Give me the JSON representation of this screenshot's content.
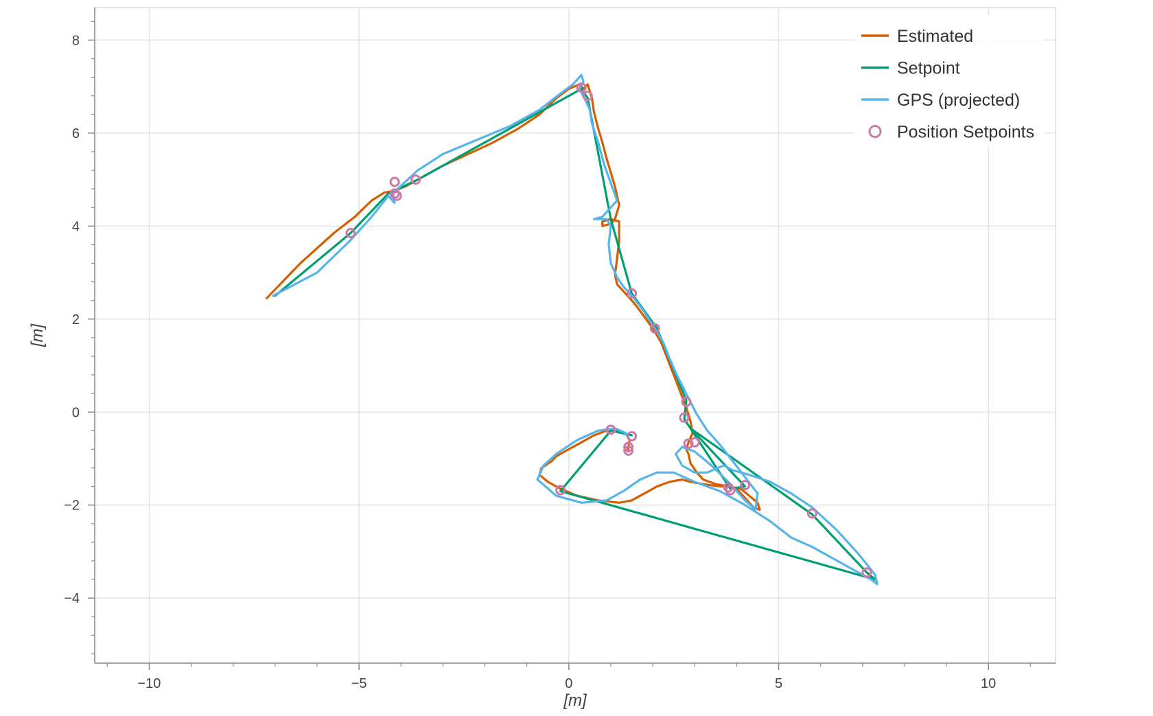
{
  "chart_data": {
    "type": "line",
    "title": "",
    "xlabel": "[m]",
    "ylabel": "[m]",
    "xlim": [
      -11.3,
      11.6
    ],
    "ylim": [
      -5.4,
      8.7
    ],
    "xticks": [
      -10,
      -5,
      0,
      5,
      10
    ],
    "xtick_labels": [
      "−10",
      "−5",
      "0",
      "5",
      "10"
    ],
    "yticks": [
      -4,
      -2,
      0,
      2,
      4,
      6,
      8
    ],
    "ytick_labels": [
      "−4",
      "−2",
      "0",
      "2",
      "4",
      "6",
      "8"
    ],
    "x_minor_step": 1,
    "y_minor_step": 0.4,
    "grid": true,
    "legend_position": "top-right",
    "series": [
      {
        "name": "Estimated",
        "kind": "line",
        "color": "#d55e00",
        "x": [
          -7.2,
          -6.4,
          -5.6,
          -5.1,
          -4.7,
          -4.4,
          -4.2,
          -3.9,
          -3.6,
          -3.0,
          -2.4,
          -1.8,
          -1.2,
          -0.7,
          -0.3,
          0.0,
          0.25,
          0.35,
          0.45,
          0.55,
          0.6,
          0.7,
          0.8,
          0.9,
          1.0,
          1.1,
          1.15,
          1.2,
          1.15,
          1.1,
          1.0,
          0.8,
          0.8,
          1.0,
          1.2,
          1.2,
          1.15,
          1.1,
          1.15,
          1.3,
          1.55,
          1.8,
          2.0,
          2.2,
          2.35,
          2.5,
          2.65,
          2.8,
          2.9,
          2.95,
          2.85,
          2.8,
          2.85,
          2.9,
          3.05,
          3.2,
          3.5,
          3.8,
          4.1,
          4.3,
          4.5,
          4.55,
          4.4,
          4.2,
          4.0,
          3.8,
          3.6,
          3.2,
          2.9,
          2.7,
          2.4,
          2.1,
          1.8,
          1.5,
          1.2,
          0.7,
          0.2,
          -0.2,
          -0.5,
          -0.7,
          -0.65,
          -0.4,
          -0.3,
          0.0,
          0.3,
          0.6,
          0.9,
          1.15,
          1.35,
          1.45,
          1.42,
          1.4
        ],
        "y": [
          2.45,
          3.2,
          3.85,
          4.2,
          4.55,
          4.72,
          4.75,
          4.85,
          5.0,
          5.3,
          5.55,
          5.8,
          6.1,
          6.4,
          6.75,
          6.95,
          7.05,
          6.95,
          7.05,
          6.75,
          6.45,
          6.1,
          5.8,
          5.45,
          5.15,
          4.85,
          4.65,
          4.45,
          4.3,
          4.15,
          4.05,
          4.0,
          4.1,
          4.15,
          4.1,
          3.7,
          3.3,
          2.95,
          2.75,
          2.6,
          2.35,
          2.05,
          1.8,
          1.5,
          1.15,
          0.8,
          0.45,
          0.1,
          -0.2,
          -0.45,
          -0.65,
          -0.8,
          -0.9,
          -1.1,
          -1.3,
          -1.45,
          -1.55,
          -1.6,
          -1.65,
          -1.8,
          -1.95,
          -2.1,
          -2.05,
          -1.85,
          -1.65,
          -1.6,
          -1.6,
          -1.55,
          -1.5,
          -1.45,
          -1.5,
          -1.6,
          -1.75,
          -1.9,
          -1.95,
          -1.9,
          -1.8,
          -1.65,
          -1.5,
          -1.35,
          -1.2,
          -1.05,
          -0.95,
          -0.8,
          -0.65,
          -0.5,
          -0.4,
          -0.38,
          -0.45,
          -0.6,
          -0.75,
          -0.85
        ]
      },
      {
        "name": "Setpoint",
        "kind": "line",
        "color": "#009e73",
        "x": [
          -7.0,
          -5.2,
          -4.3,
          -3.6,
          0.3,
          0.45,
          1.0,
          1.5,
          2.1,
          2.8,
          2.75,
          3.85,
          4.2,
          2.9,
          5.8,
          7.1,
          7.3,
          -0.2,
          1.0,
          1.5
        ],
        "y": [
          2.5,
          3.85,
          4.7,
          5.0,
          6.95,
          6.75,
          4.15,
          2.55,
          1.8,
          0.25,
          -0.15,
          -1.65,
          -1.6,
          -0.35,
          -2.2,
          -3.45,
          -3.6,
          -1.7,
          -0.4,
          -0.5
        ]
      },
      {
        "name": "GPS (projected)",
        "kind": "line",
        "color": "#56b4e9",
        "x": [
          -7.05,
          -6.0,
          -5.2,
          -4.7,
          -4.3,
          -4.15,
          -4.2,
          -3.6,
          -3.0,
          -2.2,
          -1.4,
          -0.7,
          -0.2,
          0.1,
          0.3,
          0.35,
          0.25,
          0.4,
          0.5,
          0.55,
          0.7,
          0.85,
          1.05,
          1.15,
          1.0,
          0.8,
          0.6,
          0.9,
          1.0,
          0.95,
          1.0,
          1.15,
          1.3,
          1.55,
          1.8,
          2.05,
          2.25,
          2.4,
          2.6,
          2.85,
          3.05,
          3.3,
          3.6,
          3.9,
          4.2,
          4.5,
          4.45,
          4.2,
          3.8,
          3.4,
          3.0,
          2.7,
          2.55,
          2.7,
          3.0,
          3.3,
          3.55,
          3.7,
          3.9,
          4.3,
          4.8,
          5.3,
          5.8,
          6.4,
          6.9,
          7.3,
          7.35,
          7.2,
          6.8,
          6.3,
          5.8,
          5.3,
          4.8,
          4.2,
          3.6,
          3.0,
          2.5,
          2.1,
          1.7,
          1.3,
          0.9,
          0.3,
          -0.3,
          -0.75,
          -0.6,
          -0.3,
          0.2,
          0.7,
          1.1,
          1.35,
          1.42
        ],
        "y": [
          2.5,
          3.0,
          3.7,
          4.2,
          4.65,
          4.5,
          4.7,
          5.2,
          5.55,
          5.85,
          6.15,
          6.5,
          6.85,
          7.05,
          7.25,
          7.1,
          6.95,
          6.7,
          6.5,
          6.2,
          5.8,
          5.3,
          4.8,
          4.55,
          4.4,
          4.2,
          4.15,
          4.15,
          4.0,
          3.6,
          3.2,
          2.9,
          2.7,
          2.45,
          2.15,
          1.8,
          1.5,
          1.15,
          0.75,
          0.3,
          -0.05,
          -0.4,
          -0.7,
          -1.05,
          -1.4,
          -1.75,
          -2.1,
          -1.9,
          -1.5,
          -1.15,
          -0.85,
          -0.75,
          -0.9,
          -1.15,
          -1.3,
          -1.3,
          -1.2,
          -1.15,
          -1.25,
          -1.35,
          -1.5,
          -1.75,
          -2.05,
          -2.55,
          -3.05,
          -3.5,
          -3.7,
          -3.6,
          -3.4,
          -3.15,
          -2.9,
          -2.7,
          -2.35,
          -2.0,
          -1.7,
          -1.5,
          -1.3,
          -1.3,
          -1.45,
          -1.7,
          -1.9,
          -1.95,
          -1.8,
          -1.45,
          -1.15,
          -0.9,
          -0.6,
          -0.4,
          -0.35,
          -0.45,
          -0.55
        ]
      },
      {
        "name": "Position Setpoints",
        "kind": "markers",
        "color": "#cc79a7",
        "x": [
          -5.2,
          -4.15,
          -4.15,
          -4.1,
          -3.65,
          0.3,
          0.45,
          1.5,
          2.05,
          2.8,
          2.75,
          2.85,
          3.0,
          1.0,
          1.5,
          1.42,
          1.42,
          3.8,
          3.85,
          4.2,
          5.8,
          7.1,
          -0.2
        ],
        "y": [
          3.85,
          4.95,
          4.7,
          4.65,
          5.0,
          6.98,
          6.8,
          2.55,
          1.8,
          0.22,
          -0.12,
          -0.68,
          -0.65,
          -0.38,
          -0.52,
          -0.75,
          -0.83,
          -1.62,
          -1.68,
          -1.57,
          -2.18,
          -3.45,
          -1.68
        ]
      }
    ]
  }
}
